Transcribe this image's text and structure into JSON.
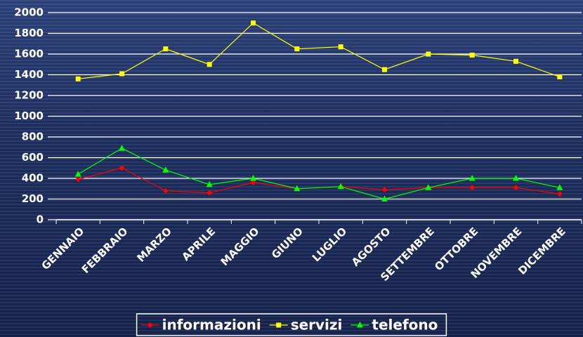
{
  "chart_data": {
    "type": "line",
    "categories": [
      "GENNAIO",
      "FEBBRAIO",
      "MARZO",
      "APRILE",
      "MAGGIO",
      "GIUNO",
      "LUGLIO",
      "AGOSTO",
      "SETTEMBRE",
      "OTTOBRE",
      "NOVEMBRE",
      "DICEMBRE"
    ],
    "series": [
      {
        "name": "informazioni",
        "color": "#ff0000",
        "marker": "diamond",
        "values": [
          390,
          500,
          280,
          260,
          360,
          300,
          320,
          290,
          310,
          310,
          310,
          250
        ]
      },
      {
        "name": "servizi",
        "color": "#ffff00",
        "marker": "square",
        "values": [
          1360,
          1410,
          1650,
          1500,
          1900,
          1650,
          1670,
          1450,
          1600,
          1590,
          1530,
          1380
        ]
      },
      {
        "name": "telefono",
        "color": "#00ff00",
        "marker": "triangle",
        "values": [
          440,
          690,
          480,
          340,
          400,
          300,
          320,
          200,
          310,
          400,
          400,
          310
        ]
      }
    ],
    "ylim": [
      0,
      2000
    ],
    "yticks": [
      0,
      200,
      400,
      600,
      800,
      1000,
      1200,
      1400,
      1600,
      1800,
      2000
    ],
    "grid": true,
    "legend": "bottom"
  }
}
